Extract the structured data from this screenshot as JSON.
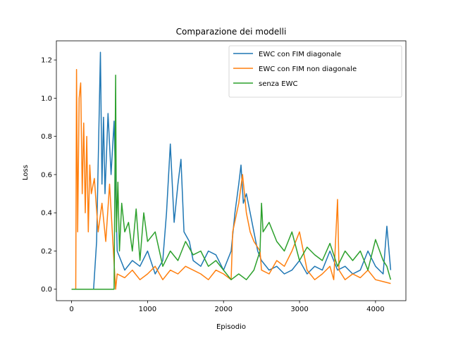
{
  "chart_data": {
    "type": "line",
    "title": "Comparazione dei modelli",
    "xlabel": "Episodio",
    "ylabel": "Loss",
    "xlim": [
      -200,
      4400
    ],
    "ylim": [
      -0.06,
      1.3
    ],
    "x_ticks": [
      0,
      1000,
      2000,
      3000,
      4000
    ],
    "y_ticks": [
      0.0,
      0.2,
      0.4,
      0.6,
      0.8,
      1.0,
      1.2
    ],
    "x_tick_labels": [
      "0",
      "1000",
      "2000",
      "3000",
      "4000"
    ],
    "y_tick_labels": [
      "0.0",
      "0.2",
      "0.4",
      "0.6",
      "0.8",
      "1.0",
      "1.2"
    ],
    "grid": false,
    "legend_position": "top-right",
    "series": [
      {
        "name": "EWC con FIM diagonale",
        "color": "#1f77b4",
        "x": [
          0,
          290,
          330,
          380,
          400,
          420,
          440,
          480,
          520,
          560,
          600,
          700,
          800,
          900,
          1000,
          1100,
          1200,
          1250,
          1300,
          1350,
          1400,
          1440,
          1480,
          1550,
          1600,
          1700,
          1800,
          1900,
          2000,
          2100,
          2150,
          2200,
          2230,
          2260,
          2300,
          2350,
          2400,
          2450,
          2500,
          2600,
          2700,
          2800,
          2900,
          3000,
          3100,
          3200,
          3300,
          3400,
          3500,
          3600,
          3700,
          3800,
          3900,
          4000,
          4100,
          4150,
          4200
        ],
        "y": [
          0.0,
          0.0,
          0.25,
          1.24,
          0.55,
          0.9,
          0.5,
          0.92,
          0.6,
          0.88,
          0.2,
          0.1,
          0.15,
          0.12,
          0.2,
          0.08,
          0.15,
          0.4,
          0.76,
          0.35,
          0.55,
          0.68,
          0.3,
          0.25,
          0.15,
          0.12,
          0.2,
          0.18,
          0.1,
          0.2,
          0.4,
          0.55,
          0.65,
          0.45,
          0.5,
          0.4,
          0.3,
          0.2,
          0.15,
          0.1,
          0.12,
          0.08,
          0.1,
          0.15,
          0.08,
          0.12,
          0.1,
          0.2,
          0.1,
          0.12,
          0.08,
          0.1,
          0.2,
          0.12,
          0.08,
          0.33,
          0.1
        ]
      },
      {
        "name": "EWC con FIM non diagonale",
        "color": "#ff7f0e",
        "x": [
          0,
          55,
          65,
          80,
          100,
          120,
          140,
          160,
          180,
          200,
          220,
          240,
          260,
          300,
          350,
          400,
          450,
          500,
          550,
          580,
          600,
          700,
          800,
          900,
          1000,
          1100,
          1200,
          1300,
          1400,
          1500,
          1600,
          1700,
          1800,
          1900,
          2000,
          2100,
          2120,
          2200,
          2250,
          2300,
          2350,
          2400,
          2480,
          2500,
          2600,
          2700,
          2800,
          2900,
          3000,
          3100,
          3200,
          3300,
          3400,
          3450,
          3500,
          3520,
          3600,
          3700,
          3800,
          3900,
          4000,
          4100,
          4200
        ],
        "y": [
          0.0,
          0.0,
          1.15,
          0.3,
          1.0,
          1.08,
          0.5,
          0.87,
          0.4,
          0.8,
          0.3,
          0.65,
          0.5,
          0.58,
          0.3,
          0.45,
          0.25,
          0.55,
          0.2,
          0.0,
          0.08,
          0.06,
          0.1,
          0.05,
          0.08,
          0.12,
          0.05,
          0.1,
          0.08,
          0.12,
          0.1,
          0.08,
          0.05,
          0.1,
          0.08,
          0.05,
          0.3,
          0.45,
          0.6,
          0.4,
          0.3,
          0.25,
          0.2,
          0.1,
          0.08,
          0.15,
          0.12,
          0.2,
          0.3,
          0.1,
          0.05,
          0.08,
          0.12,
          0.05,
          0.47,
          0.1,
          0.05,
          0.08,
          0.06,
          0.1,
          0.05,
          0.04,
          0.03
        ]
      },
      {
        "name": "senza EWC",
        "color": "#2ca02c",
        "x": [
          0,
          560,
          580,
          590,
          610,
          630,
          660,
          700,
          750,
          800,
          850,
          900,
          950,
          1000,
          1100,
          1200,
          1300,
          1400,
          1500,
          1600,
          1700,
          1800,
          1900,
          2000,
          2100,
          2200,
          2300,
          2400,
          2480,
          2500,
          2520,
          2600,
          2700,
          2800,
          2900,
          3000,
          3100,
          3200,
          3300,
          3400,
          3500,
          3600,
          3700,
          3800,
          3900,
          4000,
          4100,
          4150,
          4200
        ],
        "y": [
          0.0,
          0.0,
          1.12,
          0.3,
          0.56,
          0.2,
          0.45,
          0.3,
          0.35,
          0.2,
          0.42,
          0.15,
          0.4,
          0.25,
          0.3,
          0.12,
          0.2,
          0.15,
          0.25,
          0.18,
          0.2,
          0.12,
          0.15,
          0.1,
          0.05,
          0.08,
          0.05,
          0.1,
          0.2,
          0.45,
          0.3,
          0.35,
          0.25,
          0.2,
          0.3,
          0.15,
          0.22,
          0.18,
          0.15,
          0.24,
          0.12,
          0.2,
          0.15,
          0.2,
          0.1,
          0.26,
          0.15,
          0.12,
          0.05
        ]
      }
    ]
  }
}
